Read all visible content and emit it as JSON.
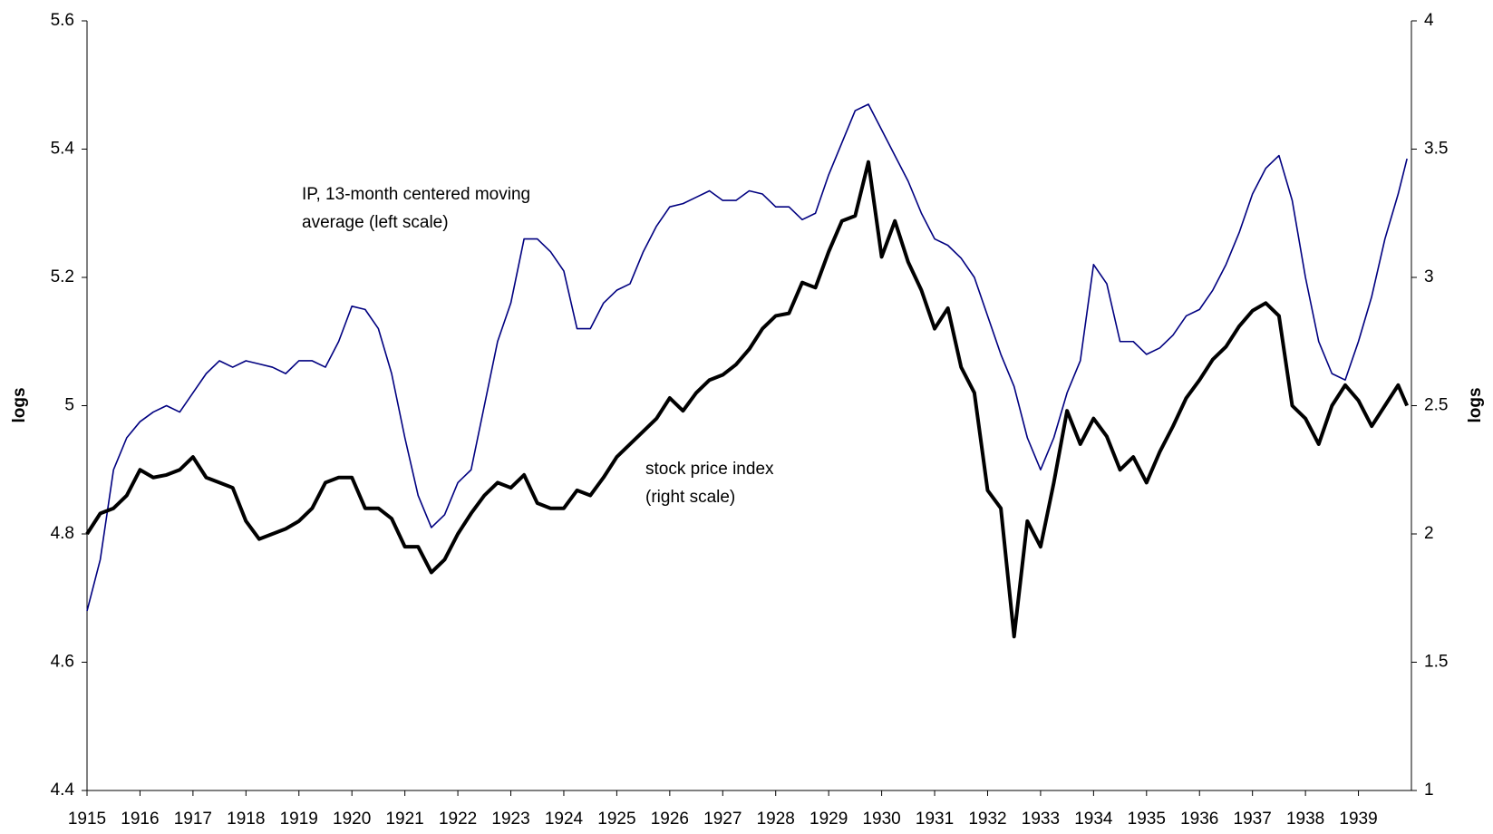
{
  "chart_data": {
    "type": "line",
    "ylabel": "logs",
    "y2label": "logs",
    "annotations": [
      {
        "lines": [
          "IP, 13-month centered moving",
          "average (left scale)"
        ]
      },
      {
        "lines": [
          "stock price index",
          "(right scale)"
        ]
      }
    ],
    "x": [
      1915,
      1915.25,
      1915.5,
      1915.75,
      1916,
      1916.25,
      1916.5,
      1916.75,
      1917,
      1917.25,
      1917.5,
      1917.75,
      1918,
      1918.25,
      1918.5,
      1918.75,
      1919,
      1919.25,
      1919.5,
      1919.75,
      1920,
      1920.25,
      1920.5,
      1920.75,
      1921,
      1921.25,
      1921.5,
      1921.75,
      1922,
      1922.25,
      1922.5,
      1922.75,
      1923,
      1923.25,
      1923.5,
      1923.75,
      1924,
      1924.25,
      1924.5,
      1924.75,
      1925,
      1925.25,
      1925.5,
      1925.75,
      1926,
      1926.25,
      1926.5,
      1926.75,
      1927,
      1927.25,
      1927.5,
      1927.75,
      1928,
      1928.25,
      1928.5,
      1928.75,
      1929,
      1929.25,
      1929.5,
      1929.75,
      1930,
      1930.25,
      1930.5,
      1930.75,
      1931,
      1931.25,
      1931.5,
      1931.75,
      1932,
      1932.25,
      1932.5,
      1932.75,
      1933,
      1933.25,
      1933.5,
      1933.75,
      1934,
      1934.25,
      1934.5,
      1934.75,
      1935,
      1935.25,
      1935.5,
      1935.75,
      1936,
      1936.25,
      1936.5,
      1936.75,
      1937,
      1937.25,
      1937.5,
      1937.75,
      1938,
      1938.25,
      1938.5,
      1938.75,
      1939,
      1939.25,
      1939.5,
      1939.75,
      1939.917
    ],
    "series": [
      {
        "name": "IP, 13-month centered moving average",
        "color": "#000080",
        "width": 1.6,
        "values": [
          4.68,
          4.76,
          4.9,
          4.95,
          4.975,
          4.99,
          5.0,
          4.99,
          5.02,
          5.05,
          5.07,
          5.06,
          5.07,
          5.065,
          5.06,
          5.05,
          5.07,
          5.07,
          5.06,
          5.1,
          5.155,
          5.15,
          5.12,
          5.05,
          4.95,
          4.86,
          4.81,
          4.83,
          4.88,
          4.9,
          5.0,
          5.1,
          5.16,
          5.26,
          5.26,
          5.24,
          5.21,
          5.12,
          5.12,
          5.16,
          5.18,
          5.19,
          5.24,
          5.28,
          5.31,
          5.315,
          5.325,
          5.335,
          5.32,
          5.32,
          5.335,
          5.33,
          5.31,
          5.31,
          5.29,
          5.3,
          5.36,
          5.41,
          5.46,
          5.47,
          5.43,
          5.39,
          5.35,
          5.3,
          5.26,
          5.25,
          5.23,
          5.2,
          5.14,
          5.08,
          5.03,
          4.95,
          4.9,
          4.95,
          5.02,
          5.07,
          5.22,
          5.19,
          5.1,
          5.1,
          5.08,
          5.09,
          5.11,
          5.14,
          5.15,
          5.18,
          5.22,
          5.27,
          5.33,
          5.37,
          5.39,
          5.32,
          5.2,
          5.1,
          5.05,
          5.04,
          5.1,
          5.17,
          5.26,
          5.33,
          5.385
        ]
      },
      {
        "name": "stock price index",
        "color": "#000000",
        "width": 4,
        "axis": "y2",
        "values": [
          2.0,
          2.08,
          2.1,
          2.15,
          2.25,
          2.22,
          2.23,
          2.25,
          2.3,
          2.22,
          2.2,
          2.18,
          2.05,
          1.98,
          2.0,
          2.02,
          2.05,
          2.1,
          2.2,
          2.22,
          2.22,
          2.1,
          2.1,
          2.06,
          1.95,
          1.95,
          1.85,
          1.9,
          2.0,
          2.08,
          2.15,
          2.2,
          2.18,
          2.23,
          2.12,
          2.1,
          2.1,
          2.17,
          2.15,
          2.22,
          2.3,
          2.35,
          2.4,
          2.45,
          2.53,
          2.48,
          2.55,
          2.6,
          2.62,
          2.66,
          2.72,
          2.8,
          2.85,
          2.86,
          2.98,
          2.96,
          3.1,
          3.22,
          3.24,
          3.45,
          3.08,
          3.22,
          3.06,
          2.95,
          2.8,
          2.88,
          2.65,
          2.55,
          2.17,
          2.1,
          1.6,
          2.05,
          1.95,
          2.2,
          2.48,
          2.35,
          2.45,
          2.38,
          2.25,
          2.3,
          2.2,
          2.32,
          2.42,
          2.53,
          2.6,
          2.68,
          2.73,
          2.81,
          2.87,
          2.9,
          2.85,
          2.5,
          2.45,
          2.35,
          2.5,
          2.58,
          2.52,
          2.42,
          2.5,
          2.58,
          2.5
        ]
      }
    ],
    "xlim": [
      1915,
      1940
    ],
    "xticks": [
      1915,
      1916,
      1917,
      1918,
      1919,
      1920,
      1921,
      1922,
      1923,
      1924,
      1925,
      1926,
      1927,
      1928,
      1929,
      1930,
      1931,
      1932,
      1933,
      1934,
      1935,
      1936,
      1937,
      1938,
      1939
    ],
    "ylim": [
      4.4,
      5.6
    ],
    "yticks": [
      4.4,
      4.6,
      4.8,
      5,
      5.2,
      5.4,
      5.6
    ],
    "y2lim": [
      1,
      4
    ],
    "y2ticks": [
      1,
      1.5,
      2,
      2.5,
      3,
      3.5,
      4
    ],
    "grid": false
  }
}
